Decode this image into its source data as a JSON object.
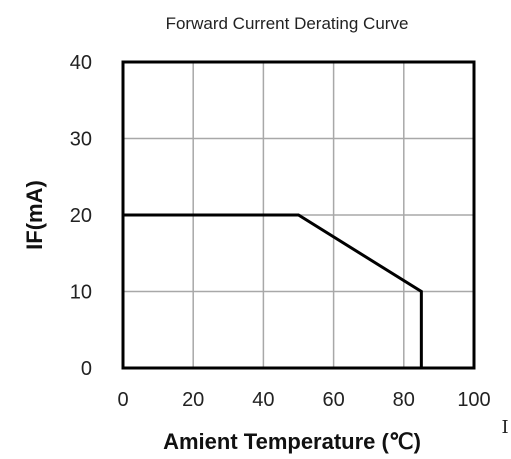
{
  "chart_data": {
    "type": "line",
    "title": "Forward Current Derating Curve",
    "xlabel": "Amient Temperature (℃)",
    "ylabel": "IF(mA)",
    "xlim": [
      0,
      100
    ],
    "ylim": [
      0,
      40
    ],
    "xticks": [
      0,
      20,
      40,
      60,
      80,
      100
    ],
    "yticks": [
      0,
      10,
      20,
      30,
      40
    ],
    "grid": true,
    "series": [
      {
        "x": [
          0,
          50,
          85,
          85
        ],
        "y": [
          20,
          20,
          10,
          0
        ]
      }
    ],
    "colors": {
      "line": "#000000",
      "grid": "#a8a8a8",
      "frame": "#000000"
    },
    "side_mark": "I"
  }
}
